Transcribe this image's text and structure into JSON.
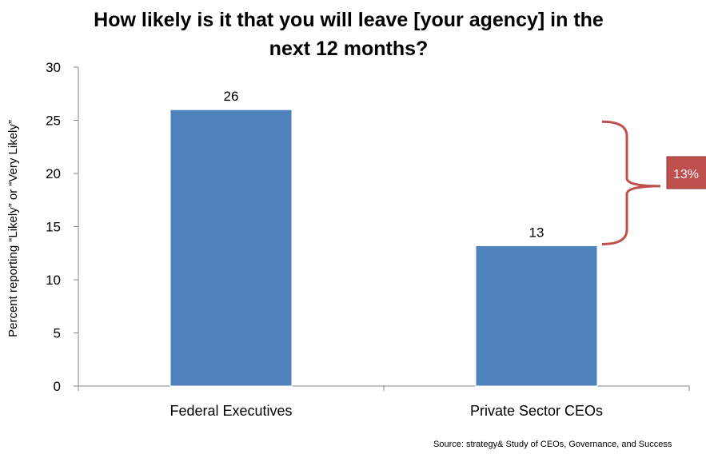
{
  "chart_data": {
    "type": "bar",
    "title": "How likely is it that you will leave [your agency] in the next 12 months?",
    "title_lines": [
      "How likely is it that you will leave [your agency] in the",
      "next 12 months?"
    ],
    "categories": [
      "Federal Executives",
      "Private Sector CEOs"
    ],
    "values": [
      26,
      13.2
    ],
    "data_labels": [
      "26",
      "13"
    ],
    "xlabel": "",
    "ylabel": "Percent  reporting “Likely” or “Very Likely”",
    "ylim": [
      0,
      30
    ],
    "yticks": [
      0,
      5,
      10,
      15,
      20,
      25,
      30
    ],
    "grid": false,
    "legend": "none",
    "bar_color": "#4f81bd",
    "annotation": {
      "text": "13%",
      "color": "#c0504d",
      "box_color": "#c0504d",
      "from_value": 26,
      "to_value": 13.2
    },
    "source": "Source: strategy& Study of CEOs, Governance, and Success"
  }
}
